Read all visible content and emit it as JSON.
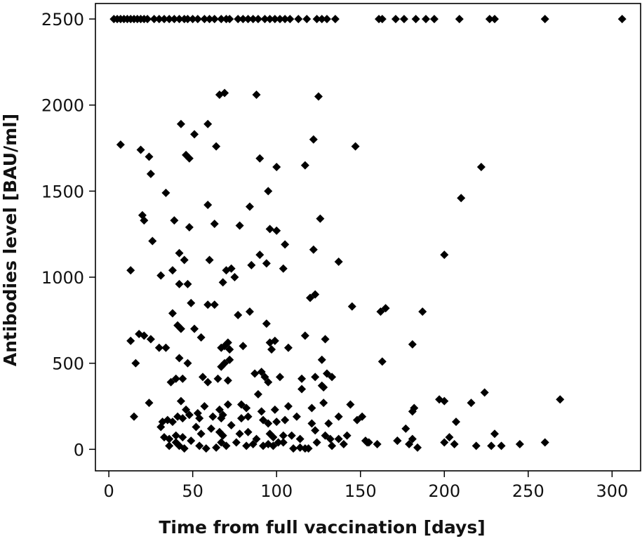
{
  "chart_data": {
    "type": "scatter",
    "title": "",
    "xlabel": "Time from full vaccination [days]",
    "ylabel": "Antibodies level [BAU/ml]",
    "xlim": [
      -8,
      317
    ],
    "ylim": [
      -125,
      2590
    ],
    "xticks": [
      0,
      50,
      100,
      150,
      200,
      250,
      300
    ],
    "yticks": [
      0,
      500,
      1000,
      1500,
      2000,
      2500
    ],
    "grid": false,
    "marker": "diamond",
    "marker_color": "#000000",
    "points": [
      [
        3,
        2500
      ],
      [
        5,
        2500
      ],
      [
        7,
        2500
      ],
      [
        9,
        2500
      ],
      [
        11,
        2500
      ],
      [
        13,
        2500
      ],
      [
        15,
        2500
      ],
      [
        17,
        2500
      ],
      [
        19,
        2500
      ],
      [
        21,
        2500
      ],
      [
        23,
        2500
      ],
      [
        27,
        2500
      ],
      [
        30,
        2500
      ],
      [
        33,
        2500
      ],
      [
        36,
        2500
      ],
      [
        39,
        2500
      ],
      [
        42,
        2500
      ],
      [
        45,
        2500
      ],
      [
        47,
        2500
      ],
      [
        50,
        2500
      ],
      [
        53,
        2500
      ],
      [
        57,
        2500
      ],
      [
        60,
        2500
      ],
      [
        63,
        2500
      ],
      [
        67,
        2500
      ],
      [
        70,
        2500
      ],
      [
        72,
        2500
      ],
      [
        77,
        2500
      ],
      [
        80,
        2500
      ],
      [
        83,
        2500
      ],
      [
        86,
        2500
      ],
      [
        89,
        2500
      ],
      [
        93,
        2500
      ],
      [
        96,
        2500
      ],
      [
        99,
        2500
      ],
      [
        102,
        2500
      ],
      [
        105,
        2500
      ],
      [
        108,
        2500
      ],
      [
        113,
        2500
      ],
      [
        118,
        2500
      ],
      [
        124,
        2500
      ],
      [
        127,
        2500
      ],
      [
        130,
        2500
      ],
      [
        135,
        2500
      ],
      [
        161,
        2500
      ],
      [
        163,
        2500
      ],
      [
        171,
        2500
      ],
      [
        176,
        2500
      ],
      [
        183,
        2500
      ],
      [
        189,
        2500
      ],
      [
        194,
        2500
      ],
      [
        209,
        2500
      ],
      [
        227,
        2500
      ],
      [
        230,
        2500
      ],
      [
        260,
        2500
      ],
      [
        306,
        2500
      ],
      [
        66,
        2060
      ],
      [
        69,
        2070
      ],
      [
        88,
        2060
      ],
      [
        125,
        2050
      ],
      [
        7,
        1770
      ],
      [
        19,
        1740
      ],
      [
        24,
        1700
      ],
      [
        43,
        1890
      ],
      [
        46,
        1710
      ],
      [
        48,
        1690
      ],
      [
        51,
        1830
      ],
      [
        59,
        1890
      ],
      [
        64,
        1760
      ],
      [
        90,
        1690
      ],
      [
        117,
        1650
      ],
      [
        122,
        1800
      ],
      [
        147,
        1760
      ],
      [
        222,
        1640
      ],
      [
        25,
        1600
      ],
      [
        34,
        1490
      ],
      [
        20,
        1360
      ],
      [
        21,
        1330
      ],
      [
        39,
        1330
      ],
      [
        48,
        1290
      ],
      [
        59,
        1420
      ],
      [
        63,
        1310
      ],
      [
        78,
        1300
      ],
      [
        84,
        1410
      ],
      [
        95,
        1500
      ],
      [
        96,
        1280
      ],
      [
        100,
        1270
      ],
      [
        105,
        1190
      ],
      [
        126,
        1340
      ],
      [
        210,
        1460
      ],
      [
        100,
        1640
      ],
      [
        26,
        1210
      ],
      [
        13,
        1040
      ],
      [
        31,
        1010
      ],
      [
        38,
        1040
      ],
      [
        42,
        1140
      ],
      [
        45,
        1100
      ],
      [
        42,
        960
      ],
      [
        47,
        960
      ],
      [
        60,
        1100
      ],
      [
        68,
        970
      ],
      [
        70,
        1040
      ],
      [
        73,
        1050
      ],
      [
        75,
        1000
      ],
      [
        85,
        1070
      ],
      [
        90,
        1130
      ],
      [
        94,
        1080
      ],
      [
        104,
        1050
      ],
      [
        122,
        1160
      ],
      [
        137,
        1090
      ],
      [
        200,
        1130
      ],
      [
        38,
        790
      ],
      [
        41,
        720
      ],
      [
        43,
        700
      ],
      [
        49,
        850
      ],
      [
        51,
        700
      ],
      [
        59,
        840
      ],
      [
        63,
        840
      ],
      [
        77,
        780
      ],
      [
        84,
        800
      ],
      [
        94,
        730
      ],
      [
        120,
        880
      ],
      [
        123,
        900
      ],
      [
        145,
        830
      ],
      [
        162,
        800
      ],
      [
        165,
        820
      ],
      [
        187,
        800
      ],
      [
        13,
        630
      ],
      [
        18,
        670
      ],
      [
        21,
        660
      ],
      [
        25,
        640
      ],
      [
        30,
        590
      ],
      [
        34,
        590
      ],
      [
        55,
        650
      ],
      [
        67,
        590
      ],
      [
        69,
        600
      ],
      [
        71,
        620
      ],
      [
        72,
        580
      ],
      [
        80,
        600
      ],
      [
        97,
        580
      ],
      [
        96,
        620
      ],
      [
        99,
        630
      ],
      [
        107,
        590
      ],
      [
        117,
        660
      ],
      [
        129,
        640
      ],
      [
        181,
        610
      ],
      [
        16,
        500
      ],
      [
        42,
        530
      ],
      [
        47,
        500
      ],
      [
        56,
        420
      ],
      [
        67,
        480
      ],
      [
        69,
        500
      ],
      [
        72,
        520
      ],
      [
        87,
        440
      ],
      [
        91,
        450
      ],
      [
        93,
        420
      ],
      [
        102,
        420
      ],
      [
        115,
        410
      ],
      [
        123,
        420
      ],
      [
        127,
        520
      ],
      [
        130,
        440
      ],
      [
        133,
        420
      ],
      [
        163,
        510
      ],
      [
        40,
        410
      ],
      [
        44,
        410
      ],
      [
        37,
        390
      ],
      [
        59,
        390
      ],
      [
        65,
        410
      ],
      [
        71,
        400
      ],
      [
        95,
        390
      ],
      [
        115,
        350
      ],
      [
        127,
        370
      ],
      [
        128,
        360
      ],
      [
        24,
        270
      ],
      [
        43,
        280
      ],
      [
        46,
        230
      ],
      [
        48,
        200
      ],
      [
        53,
        210
      ],
      [
        57,
        250
      ],
      [
        66,
        230
      ],
      [
        71,
        260
      ],
      [
        79,
        260
      ],
      [
        82,
        240
      ],
      [
        89,
        320
      ],
      [
        91,
        220
      ],
      [
        99,
        230
      ],
      [
        107,
        250
      ],
      [
        121,
        240
      ],
      [
        128,
        270
      ],
      [
        144,
        260
      ],
      [
        182,
        240
      ],
      [
        197,
        290
      ],
      [
        200,
        280
      ],
      [
        216,
        270
      ],
      [
        224,
        330
      ],
      [
        269,
        290
      ],
      [
        15,
        190
      ],
      [
        32,
        160
      ],
      [
        35,
        170
      ],
      [
        38,
        160
      ],
      [
        41,
        190
      ],
      [
        44,
        180
      ],
      [
        54,
        180
      ],
      [
        62,
        190
      ],
      [
        67,
        180
      ],
      [
        68,
        200
      ],
      [
        79,
        180
      ],
      [
        83,
        190
      ],
      [
        92,
        170
      ],
      [
        95,
        150
      ],
      [
        100,
        160
      ],
      [
        105,
        170
      ],
      [
        112,
        190
      ],
      [
        121,
        150
      ],
      [
        131,
        150
      ],
      [
        137,
        190
      ],
      [
        148,
        170
      ],
      [
        151,
        190
      ],
      [
        181,
        220
      ],
      [
        207,
        160
      ],
      [
        31,
        130
      ],
      [
        33,
        70
      ],
      [
        36,
        60
      ],
      [
        40,
        80
      ],
      [
        44,
        70
      ],
      [
        52,
        130
      ],
      [
        55,
        90
      ],
      [
        61,
        120
      ],
      [
        66,
        100
      ],
      [
        68,
        80
      ],
      [
        73,
        140
      ],
      [
        78,
        90
      ],
      [
        83,
        100
      ],
      [
        88,
        60
      ],
      [
        96,
        90
      ],
      [
        98,
        70
      ],
      [
        104,
        80
      ],
      [
        109,
        80
      ],
      [
        114,
        60
      ],
      [
        123,
        110
      ],
      [
        129,
        80
      ],
      [
        132,
        60
      ],
      [
        137,
        60
      ],
      [
        142,
        80
      ],
      [
        153,
        50
      ],
      [
        155,
        40
      ],
      [
        172,
        50
      ],
      [
        177,
        120
      ],
      [
        181,
        60
      ],
      [
        203,
        70
      ],
      [
        230,
        90
      ],
      [
        36,
        20
      ],
      [
        40,
        40
      ],
      [
        42,
        20
      ],
      [
        45,
        5
      ],
      [
        49,
        50
      ],
      [
        54,
        20
      ],
      [
        58,
        5
      ],
      [
        64,
        10
      ],
      [
        67,
        40
      ],
      [
        70,
        20
      ],
      [
        76,
        40
      ],
      [
        82,
        20
      ],
      [
        86,
        30
      ],
      [
        92,
        20
      ],
      [
        95,
        30
      ],
      [
        98,
        20
      ],
      [
        101,
        40
      ],
      [
        104,
        40
      ],
      [
        110,
        5
      ],
      [
        114,
        10
      ],
      [
        117,
        5
      ],
      [
        119,
        5
      ],
      [
        124,
        40
      ],
      [
        133,
        20
      ],
      [
        140,
        30
      ],
      [
        154,
        40
      ],
      [
        160,
        30
      ],
      [
        172,
        50
      ],
      [
        179,
        30
      ],
      [
        184,
        10
      ],
      [
        200,
        40
      ],
      [
        206,
        30
      ],
      [
        219,
        20
      ],
      [
        228,
        20
      ],
      [
        234,
        20
      ],
      [
        245,
        30
      ],
      [
        260,
        40
      ]
    ]
  }
}
